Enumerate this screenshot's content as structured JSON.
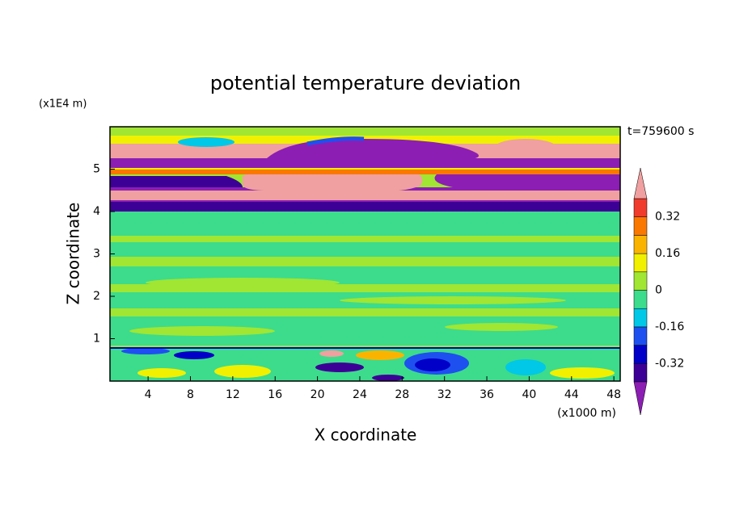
{
  "chart_data": {
    "type": "contour",
    "title": "potential temperature deviation",
    "x_label": "X coordinate",
    "y_label": "Z coordinate",
    "x_unit": "(x1000 m)",
    "y_unit": "(x1E4 m)",
    "annotation": "t=759600 s",
    "xlim": [
      0.4,
      48.6
    ],
    "ylim": [
      0,
      6
    ],
    "xticks": [
      4,
      8,
      12,
      16,
      20,
      24,
      28,
      32,
      36,
      40,
      44,
      48
    ],
    "yticks": [
      1,
      2,
      3,
      4,
      5
    ],
    "colorbar": {
      "levels": [
        -0.4,
        -0.32,
        -0.24,
        -0.16,
        -0.08,
        0,
        0.08,
        0.16,
        0.24,
        0.32,
        0.4
      ],
      "colors": [
        "#8c1eb4",
        "#3c0096",
        "#0000c8",
        "#1e50f0",
        "#00c8e6",
        "#3cdc8c",
        "#a0e632",
        "#f0f000",
        "#fab400",
        "#fa7800",
        "#f03c2c",
        "#f0a0a0"
      ],
      "ticks": [
        0.32,
        0.16,
        0,
        -0.16,
        -0.32
      ]
    }
  }
}
